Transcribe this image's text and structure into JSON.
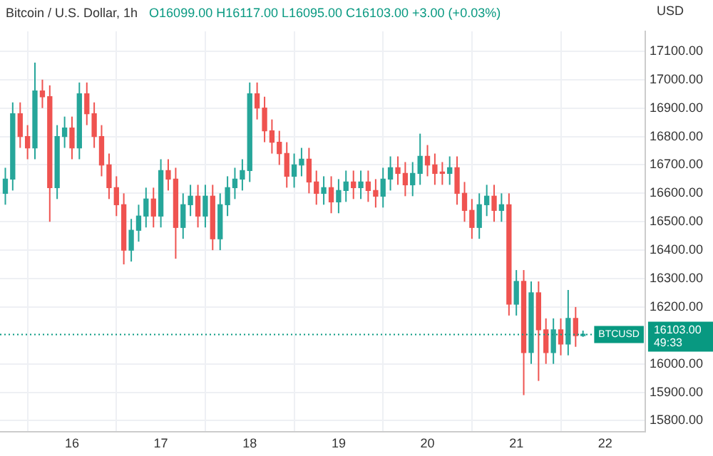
{
  "chart_data": {
    "type": "candlestick",
    "title": "Bitcoin / U.S. Dollar, 1h",
    "subtitle": "O16099.00 H16117.00 L16095.00 C16103.00 +3.00 (+0.03%)",
    "ylabel": "USD",
    "x": [
      15.25,
      15.333,
      15.417,
      15.5,
      15.583,
      15.667,
      15.75,
      15.833,
      15.917,
      16,
      16.083,
      16.167,
      16.25,
      16.333,
      16.417,
      16.5,
      16.583,
      16.667,
      16.75,
      16.833,
      16.917,
      17,
      17.083,
      17.167,
      17.25,
      17.333,
      17.417,
      17.5,
      17.583,
      17.667,
      17.75,
      17.833,
      17.917,
      18,
      18.083,
      18.167,
      18.25,
      18.333,
      18.417,
      18.5,
      18.583,
      18.667,
      18.75,
      18.833,
      18.917,
      19,
      19.083,
      19.167,
      19.25,
      19.333,
      19.417,
      19.5,
      19.583,
      19.667,
      19.75,
      19.833,
      19.917,
      20,
      20.083,
      20.167,
      20.25,
      20.333,
      20.417,
      20.5,
      20.583,
      20.667,
      20.75,
      20.833,
      20.917,
      21,
      21.083,
      21.167,
      21.25,
      21.333,
      21.417,
      21.5,
      21.583,
      21.667,
      21.75
    ],
    "ohlc": [
      [
        16600,
        16690,
        16560,
        16650
      ],
      [
        16650,
        16920,
        16610,
        16880
      ],
      [
        16880,
        16920,
        16760,
        16800
      ],
      [
        16800,
        16840,
        16720,
        16760
      ],
      [
        16760,
        17060,
        16720,
        16960
      ],
      [
        16960,
        17000,
        16900,
        16940
      ],
      [
        16940,
        16980,
        16500,
        16620
      ],
      [
        16620,
        16840,
        16580,
        16800
      ],
      [
        16800,
        16870,
        16760,
        16830
      ],
      [
        16830,
        16870,
        16720,
        16760
      ],
      [
        16760,
        16990,
        16720,
        16950
      ],
      [
        16950,
        16990,
        16840,
        16880
      ],
      [
        16880,
        16920,
        16760,
        16800
      ],
      [
        16800,
        16840,
        16660,
        16700
      ],
      [
        16700,
        16740,
        16580,
        16620
      ],
      [
        16620,
        16660,
        16520,
        16560
      ],
      [
        16560,
        16600,
        16350,
        16400
      ],
      [
        16400,
        16510,
        16360,
        16470
      ],
      [
        16470,
        16560,
        16430,
        16520
      ],
      [
        16520,
        16620,
        16480,
        16580
      ],
      [
        16580,
        16620,
        16480,
        16520
      ],
      [
        16520,
        16720,
        16480,
        16680
      ],
      [
        16680,
        16720,
        16610,
        16650
      ],
      [
        16650,
        16690,
        16370,
        16480
      ],
      [
        16480,
        16600,
        16440,
        16560
      ],
      [
        16560,
        16630,
        16520,
        16590
      ],
      [
        16590,
        16630,
        16480,
        16520
      ],
      [
        16520,
        16630,
        16480,
        16590
      ],
      [
        16590,
        16630,
        16400,
        16440
      ],
      [
        16440,
        16600,
        16400,
        16560
      ],
      [
        16560,
        16660,
        16520,
        16620
      ],
      [
        16620,
        16690,
        16580,
        16650
      ],
      [
        16650,
        16720,
        16610,
        16680
      ],
      [
        16680,
        16990,
        16640,
        16950
      ],
      [
        16950,
        16990,
        16860,
        16900
      ],
      [
        16900,
        16940,
        16780,
        16820
      ],
      [
        16820,
        16860,
        16740,
        16780
      ],
      [
        16780,
        16820,
        16700,
        16740
      ],
      [
        16740,
        16780,
        16620,
        16660
      ],
      [
        16660,
        16740,
        16620,
        16700
      ],
      [
        16700,
        16760,
        16660,
        16720
      ],
      [
        16720,
        16760,
        16600,
        16640
      ],
      [
        16640,
        16680,
        16560,
        16600
      ],
      [
        16600,
        16660,
        16560,
        16620
      ],
      [
        16620,
        16660,
        16530,
        16570
      ],
      [
        16570,
        16650,
        16530,
        16610
      ],
      [
        16610,
        16680,
        16570,
        16640
      ],
      [
        16640,
        16680,
        16580,
        16620
      ],
      [
        16620,
        16680,
        16580,
        16640
      ],
      [
        16640,
        16680,
        16570,
        16610
      ],
      [
        16610,
        16650,
        16550,
        16590
      ],
      [
        16590,
        16690,
        16550,
        16650
      ],
      [
        16650,
        16730,
        16610,
        16690
      ],
      [
        16690,
        16730,
        16630,
        16670
      ],
      [
        16670,
        16710,
        16590,
        16630
      ],
      [
        16630,
        16710,
        16590,
        16670
      ],
      [
        16670,
        16810,
        16630,
        16730
      ],
      [
        16730,
        16770,
        16660,
        16700
      ],
      [
        16700,
        16740,
        16630,
        16670
      ],
      [
        16670,
        16710,
        16630,
        16670
      ],
      [
        16670,
        16730,
        16630,
        16690
      ],
      [
        16690,
        16730,
        16560,
        16600
      ],
      [
        16600,
        16640,
        16500,
        16540
      ],
      [
        16540,
        16580,
        16440,
        16480
      ],
      [
        16480,
        16600,
        16440,
        16560
      ],
      [
        16560,
        16630,
        16520,
        16590
      ],
      [
        16590,
        16630,
        16500,
        16540
      ],
      [
        16540,
        16600,
        16500,
        16560
      ],
      [
        16560,
        16600,
        16170,
        16210
      ],
      [
        16210,
        16330,
        16170,
        16290
      ],
      [
        16290,
        16330,
        15890,
        16040
      ],
      [
        16040,
        16290,
        16000,
        16250
      ],
      [
        16250,
        16290,
        15940,
        16120
      ],
      [
        16120,
        16160,
        16000,
        16040
      ],
      [
        16040,
        16160,
        16000,
        16120
      ],
      [
        16120,
        16160,
        16030,
        16070
      ],
      [
        16070,
        16260,
        16030,
        16160
      ],
      [
        16160,
        16200,
        16060,
        16099
      ],
      [
        16099,
        16117,
        16095,
        16103
      ]
    ],
    "colors": [
      "#26a69a",
      "#26a69a",
      "#ef5350",
      "#ef5350",
      "#26a69a",
      "#ef5350",
      "#ef5350",
      "#26a69a",
      "#26a69a",
      "#ef5350",
      "#26a69a",
      "#ef5350",
      "#ef5350",
      "#ef5350",
      "#ef5350",
      "#ef5350",
      "#ef5350",
      "#26a69a",
      "#26a69a",
      "#26a69a",
      "#ef5350",
      "#26a69a",
      "#ef5350",
      "#ef5350",
      "#26a69a",
      "#26a69a",
      "#ef5350",
      "#26a69a",
      "#ef5350",
      "#26a69a",
      "#26a69a",
      "#26a69a",
      "#26a69a",
      "#26a69a",
      "#ef5350",
      "#ef5350",
      "#ef5350",
      "#ef5350",
      "#ef5350",
      "#26a69a",
      "#26a69a",
      "#ef5350",
      "#ef5350",
      "#26a69a",
      "#ef5350",
      "#26a69a",
      "#26a69a",
      "#ef5350",
      "#26a69a",
      "#ef5350",
      "#ef5350",
      "#26a69a",
      "#26a69a",
      "#ef5350",
      "#ef5350",
      "#26a69a",
      "#26a69a",
      "#ef5350",
      "#ef5350",
      "#ef5350",
      "#26a69a",
      "#ef5350",
      "#ef5350",
      "#ef5350",
      "#26a69a",
      "#26a69a",
      "#ef5350",
      "#26a69a",
      "#ef5350",
      "#26a69a",
      "#ef5350",
      "#26a69a",
      "#ef5350",
      "#ef5350",
      "#26a69a",
      "#ef5350",
      "#26a69a",
      "#ef5350",
      "#26a69a"
    ],
    "xlim": [
      15.19,
      22.45
    ],
    "xticks": [
      16,
      17,
      18,
      19,
      20,
      21,
      22
    ],
    "ylim": [
      15760,
      17170
    ],
    "yticks": [
      {
        "value": 15800,
        "label": "15800.00"
      },
      {
        "value": 15900,
        "label": "15900.00"
      },
      {
        "value": 16000,
        "label": "16000.00"
      },
      {
        "value": 16200,
        "label": "16200.00"
      },
      {
        "value": 16300,
        "label": "16300.00"
      },
      {
        "value": 16400,
        "label": "16400.00"
      },
      {
        "value": 16500,
        "label": "16500.00"
      },
      {
        "value": 16600,
        "label": "16600.00"
      },
      {
        "value": 16700,
        "label": "16700.00"
      },
      {
        "value": 16800,
        "label": "16800.00"
      },
      {
        "value": 16900,
        "label": "16900.00"
      },
      {
        "value": 17000,
        "label": "17000.00"
      },
      {
        "value": 17100,
        "label": "17100.00"
      }
    ],
    "ref_lines": [
      {
        "axis": "y",
        "value": 16103,
        "label": "16103.00",
        "color": "#089981",
        "line_style": "dotted"
      }
    ],
    "annotations": [
      "BTCUSD",
      "49:33"
    ],
    "grid": true,
    "legend": false
  }
}
